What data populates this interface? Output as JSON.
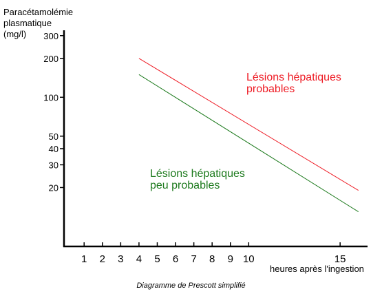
{
  "chart_data": {
    "type": "line",
    "title": "",
    "ylabel_lines": [
      "Paracétamolémie",
      "plasmatique",
      "(mg/l)"
    ],
    "xlabel": "heures après l'ingestion",
    "caption": "Diagramme de Prescott simplifié",
    "y_scale": "log",
    "ylim": [
      7,
      330
    ],
    "xlim": [
      -0.1,
      16.5
    ],
    "x_ticks": [
      1,
      2,
      3,
      4,
      5,
      6,
      7,
      8,
      9,
      10,
      15
    ],
    "y_ticks": [
      20,
      30,
      40,
      50,
      100,
      200,
      300
    ],
    "grid": false,
    "series": [
      {
        "color": "#ee1c25",
        "x": [
          4,
          16
        ],
        "y": [
          200,
          19
        ]
      },
      {
        "color": "#1d7a1d",
        "x": [
          4,
          16
        ],
        "y": [
          150,
          13
        ]
      }
    ],
    "annotations": [
      {
        "lines": [
          "Lésions hépatiques",
          "probables"
        ],
        "color": "#ee1c25"
      },
      {
        "lines": [
          "Lésions hépatiques",
          "peu probables"
        ],
        "color": "#1d7a1d"
      }
    ]
  }
}
